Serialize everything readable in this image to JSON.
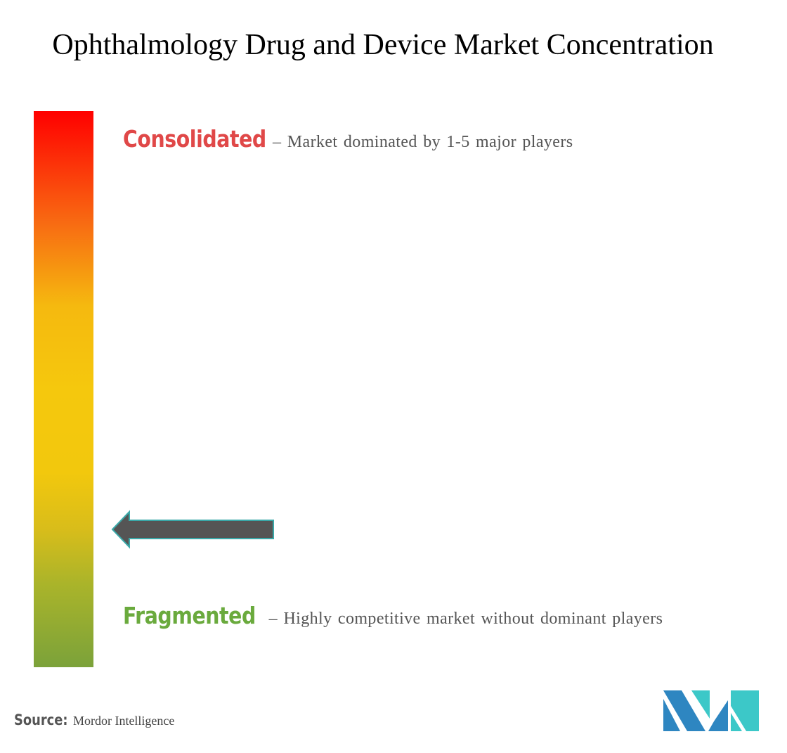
{
  "title": "Ophthalmology Drug and Device Market Concentration",
  "scale": {
    "top_color": "#ff0000",
    "bottom_color": "#7ba23a",
    "marker_position": "between fragmented and midpoint, near fragmented end"
  },
  "consolidated": {
    "label": "Consolidated",
    "description": "– Market dominated by 1-5 major players",
    "color": "#e04848"
  },
  "fragmented": {
    "label": "Fragmented",
    "description": "– Highly competitive market without dominant players",
    "color": "#6aaa3d"
  },
  "arrow": {
    "icon": "left-arrow-icon",
    "fill": "#555555",
    "outline": "#3aa8a8"
  },
  "source": {
    "label": "Source:",
    "value": "Mordor Intelligence"
  },
  "logo": {
    "icon": "mordor-intelligence-logo",
    "colors": [
      "#2e86c1",
      "#3cc8c8"
    ]
  }
}
